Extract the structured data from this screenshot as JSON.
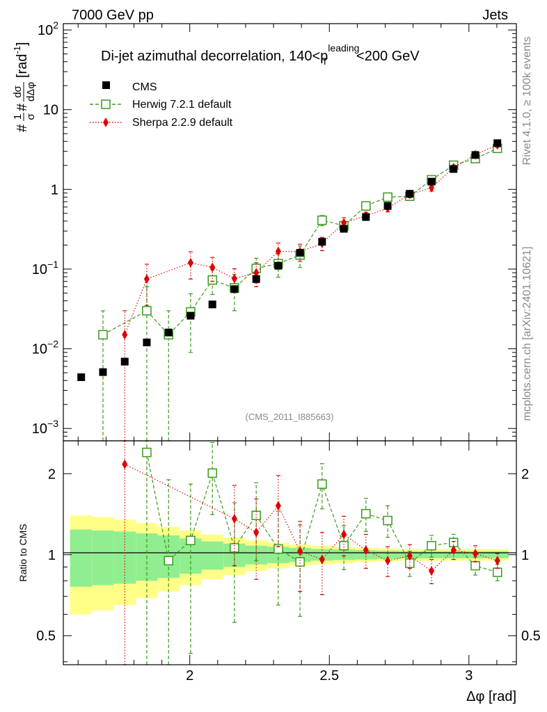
{
  "header": {
    "left": "7000 GeV pp",
    "right": "Jets"
  },
  "side_labels": {
    "rivet": "Rivet 4.1.0, ≥ 100k events",
    "mcplots": "mcplots.cern.ch [arXiv:2401.10621]"
  },
  "colors": {
    "cms": "#000000",
    "herwig": "#3a9a1a",
    "sherpa": "#e00000",
    "band_inner": "#90ee90",
    "band_outer": "#ffff88"
  },
  "chart_data": [
    {
      "type": "scatter",
      "title": "Di-jet azimuthal decorrelation, 140<p",
      "title_sup": "leading",
      "title_sub": "T",
      "title_tail": "<200 GeV",
      "ylabel": "#1/σ#dσ/dΔφ [rad⁻¹]",
      "ylabel_parts": {
        "pre": "#",
        "frac1_num": "1",
        "frac1_den": "σ",
        "mid": "#",
        "frac2_num": "dσ",
        "frac2_den": "dΔφ",
        "unit": "[rad",
        "unit_sup": "-1",
        "unit_close": "]"
      },
      "yscale": "log",
      "ylim": [
        0.0007,
        120
      ],
      "xlim": [
        1.547,
        3.17
      ],
      "yticks": [
        {
          "v": 100,
          "base": "10",
          "exp": "2"
        },
        {
          "v": 10,
          "base": "10",
          "exp": ""
        },
        {
          "v": 1,
          "base": "1",
          "exp": ""
        },
        {
          "v": 0.1,
          "base": "10",
          "exp": "−1"
        },
        {
          "v": 0.01,
          "base": "10",
          "exp": "−2"
        },
        {
          "v": 0.001,
          "base": "10",
          "exp": "−3"
        }
      ],
      "watermark": "(CMS_2011_I885663)",
      "legend": [
        {
          "name": "CMS",
          "marker": "square"
        },
        {
          "name": "Herwig 7.2.1 default",
          "marker": "open-square"
        },
        {
          "name": "Sherpa 2.2.9 default",
          "marker": "diamond"
        }
      ],
      "x": [
        1.611,
        1.689,
        1.767,
        1.846,
        1.924,
        2.003,
        2.081,
        2.16,
        2.238,
        2.317,
        2.395,
        2.474,
        2.552,
        2.631,
        2.709,
        2.788,
        2.866,
        2.945,
        3.023,
        3.102
      ],
      "series": [
        {
          "name": "CMS",
          "values": [
            0.0044,
            0.0051,
            0.0069,
            0.012,
            0.016,
            0.026,
            0.036,
            0.056,
            0.075,
            0.11,
            0.16,
            0.22,
            0.32,
            0.45,
            0.62,
            0.88,
            1.25,
            1.8,
            2.7,
            3.8
          ]
        },
        {
          "name": "Herwig 7.2.1 default",
          "values": [
            null,
            0.015,
            null,
            0.03,
            0.015,
            0.029,
            0.073,
            0.058,
            0.102,
            0.117,
            0.15,
            0.41,
            0.35,
            0.62,
            0.8,
            0.82,
            1.32,
            2.01,
            2.43,
            3.27
          ],
          "err_lo": [
            null,
            0.015,
            null,
            0.03,
            0.015,
            0.02,
            0.025,
            0.028,
            0.035,
            0.038,
            0.045,
            0.06,
            0.05,
            0.07,
            0.08,
            0.08,
            0.12,
            0.15,
            0.18,
            0.22
          ],
          "err_hi": [
            null,
            0.015,
            null,
            0.03,
            0.015,
            0.02,
            0.025,
            0.028,
            0.035,
            0.038,
            0.045,
            0.06,
            0.05,
            0.07,
            0.08,
            0.08,
            0.12,
            0.15,
            0.18,
            0.22
          ]
        },
        {
          "name": "Sherpa 2.2.9 default",
          "values": [
            null,
            null,
            0.015,
            0.075,
            null,
            0.12,
            0.105,
            0.076,
            0.09,
            0.167,
            0.165,
            0.21,
            0.38,
            0.466,
            0.582,
            0.866,
            1.05,
            1.87,
            2.72,
            3.61
          ],
          "err_lo": [
            null,
            null,
            0.0149,
            0.04,
            null,
            0.045,
            0.035,
            0.025,
            0.03,
            0.045,
            0.04,
            0.04,
            0.06,
            0.05,
            0.06,
            0.08,
            0.1,
            0.15,
            0.18,
            0.22
          ],
          "err_hi": [
            null,
            null,
            0.015,
            0.04,
            null,
            0.045,
            0.035,
            0.025,
            0.03,
            0.045,
            0.04,
            0.04,
            0.06,
            0.05,
            0.06,
            0.08,
            0.1,
            0.15,
            0.18,
            0.22
          ]
        }
      ]
    },
    {
      "type": "scatter",
      "title": "",
      "ylabel": "Ratio to CMS",
      "xlabel": "Δφ [rad]",
      "yscale": "log",
      "ylim": [
        0.39,
        2.65
      ],
      "xlim": [
        1.547,
        3.17
      ],
      "yticks": [
        0.5,
        1,
        2
      ],
      "xticks": [
        2,
        2.5,
        3
      ],
      "x": [
        1.611,
        1.689,
        1.767,
        1.846,
        1.924,
        2.003,
        2.081,
        2.16,
        2.238,
        2.317,
        2.395,
        2.474,
        2.552,
        2.631,
        2.709,
        2.788,
        2.866,
        2.945,
        3.023,
        3.102
      ],
      "bin_edges": [
        1.571,
        1.65,
        1.728,
        1.807,
        1.885,
        1.964,
        2.042,
        2.121,
        2.199,
        2.278,
        2.356,
        2.435,
        2.513,
        2.592,
        2.67,
        2.749,
        2.827,
        2.906,
        2.985,
        3.063,
        3.142
      ],
      "band_inner": [
        0.24,
        0.23,
        0.22,
        0.2,
        0.18,
        0.15,
        0.12,
        0.1,
        0.08,
        0.07,
        0.06,
        0.05,
        0.045,
        0.04,
        0.035,
        0.03,
        0.03,
        0.03,
        0.03,
        0.03
      ],
      "band_outer": [
        0.4,
        0.38,
        0.35,
        0.31,
        0.27,
        0.23,
        0.19,
        0.16,
        0.13,
        0.11,
        0.09,
        0.08,
        0.07,
        0.06,
        0.055,
        0.05,
        0.05,
        0.05,
        0.05,
        0.05
      ],
      "series": [
        {
          "name": "Herwig 7.2.1 default",
          "values": [
            null,
            null,
            null,
            2.4,
            0.95,
            1.13,
            2.01,
            1.06,
            1.4,
            1.05,
            0.94,
            1.83,
            1.08,
            1.42,
            1.34,
            0.93,
            1.08,
            1.11,
            0.91,
            0.86
          ],
          "err_lo": [
            null,
            null,
            null,
            2.3,
            0.95,
            0.7,
            0.6,
            0.5,
            0.45,
            0.4,
            0.35,
            0.35,
            0.2,
            0.2,
            0.18,
            0.1,
            0.1,
            0.08,
            0.07,
            0.06
          ],
          "err_hi": [
            null,
            null,
            null,
            2.3,
            0.95,
            0.7,
            0.6,
            0.5,
            0.45,
            0.4,
            0.35,
            0.35,
            0.2,
            0.2,
            0.18,
            0.1,
            0.1,
            0.08,
            0.07,
            0.06
          ]
        },
        {
          "name": "Sherpa 2.2.9 default",
          "values": [
            null,
            null,
            2.17,
            null,
            null,
            null,
            null,
            1.36,
            1.21,
            1.52,
            1.03,
            0.96,
            1.19,
            1.04,
            0.95,
            0.99,
            0.87,
            1.04,
            1.01,
            0.95
          ],
          "err_lo": [
            null,
            null,
            2.16,
            null,
            null,
            null,
            null,
            0.45,
            0.4,
            0.45,
            0.3,
            0.25,
            0.2,
            0.15,
            0.12,
            0.1,
            0.09,
            0.08,
            0.07,
            0.06
          ],
          "err_hi": [
            null,
            null,
            2.16,
            null,
            null,
            null,
            null,
            0.45,
            0.4,
            0.45,
            0.3,
            0.25,
            0.2,
            0.15,
            0.12,
            0.1,
            0.09,
            0.08,
            0.07,
            0.06
          ]
        }
      ]
    }
  ]
}
